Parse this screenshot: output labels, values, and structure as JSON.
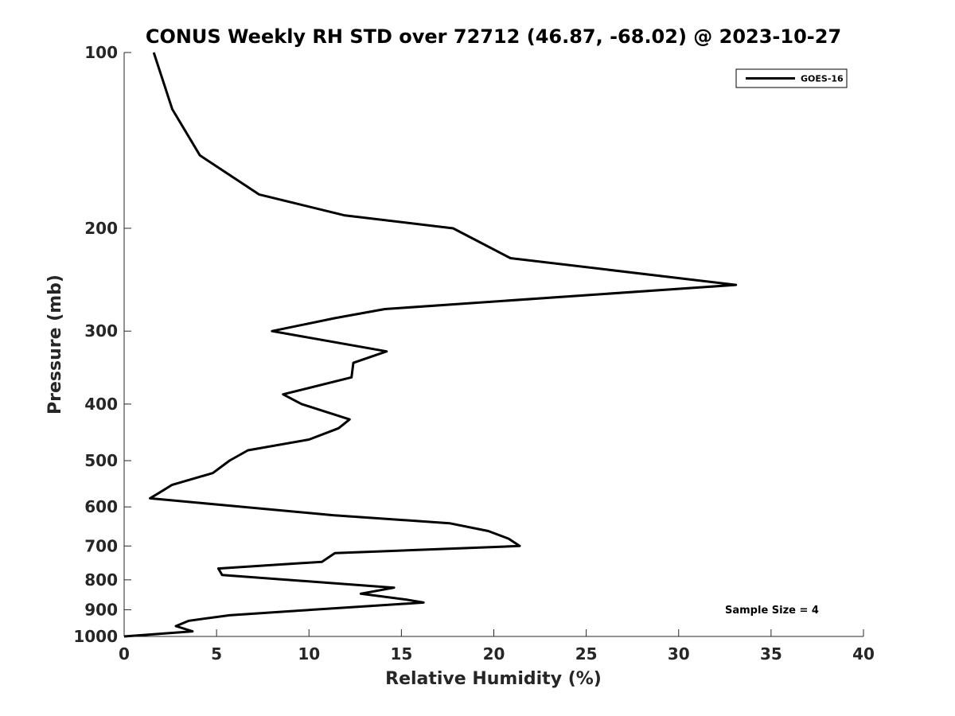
{
  "chart_data": {
    "type": "line",
    "title": "CONUS Weekly RH STD over 72712 (46.87, -68.02) @ 2023-10-27",
    "xlabel": "Relative Humidity (%)",
    "ylabel": "Pressure (mb)",
    "xlim": [
      0,
      40
    ],
    "ylim": [
      100,
      1000
    ],
    "y_scale": "log",
    "y_reversed": true,
    "x_ticks": [
      "0",
      "5",
      "10",
      "15",
      "20",
      "25",
      "30",
      "35",
      "40"
    ],
    "y_ticks": [
      "100",
      "200",
      "300",
      "400",
      "500",
      "600",
      "700",
      "800",
      "900",
      "1000"
    ],
    "grid": false,
    "legend_position": "top-right",
    "series": [
      {
        "name": "GOES-16",
        "color": "#000000",
        "x": [
          1.6,
          2.6,
          4.1,
          7.3,
          11.9,
          17.8,
          20.9,
          33.1,
          14.1,
          11.4,
          8.0,
          14.2,
          12.4,
          12.3,
          8.6,
          9.6,
          12.2,
          11.6,
          10.0,
          6.7,
          5.7,
          4.8,
          2.6,
          1.8,
          1.4,
          11.3,
          17.6,
          19.7,
          20.8,
          21.4,
          11.4,
          10.7,
          5.1,
          5.3,
          14.6,
          12.8,
          15.3,
          16.2,
          10.2,
          5.7,
          3.5,
          2.8,
          3.7,
          0.0
        ],
        "y": [
          100,
          125,
          150,
          175,
          190,
          200,
          225,
          250,
          275,
          285,
          300,
          325,
          340,
          360,
          385,
          400,
          425,
          440,
          460,
          480,
          500,
          525,
          550,
          570,
          580,
          620,
          640,
          660,
          680,
          700,
          720,
          745,
          765,
          785,
          825,
          845,
          865,
          875,
          900,
          920,
          940,
          960,
          980,
          1000
        ]
      }
    ],
    "annotations": [
      {
        "text": "Sample Size = 4"
      }
    ]
  }
}
